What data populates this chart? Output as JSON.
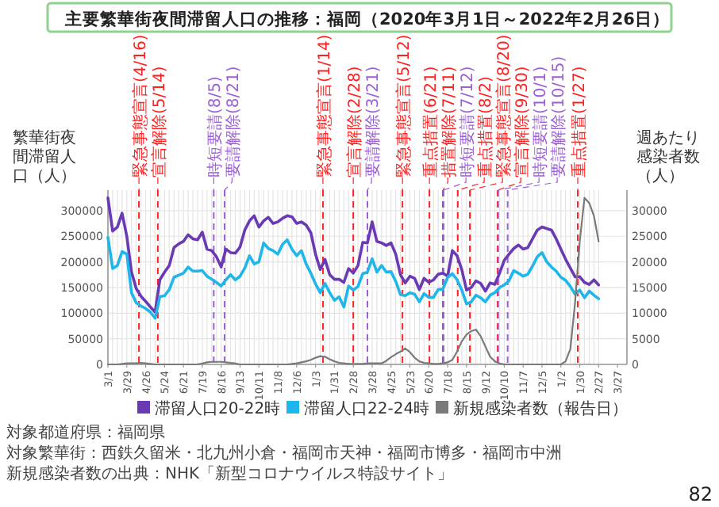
{
  "chart_data": {
    "type": "line",
    "title": "主要繁華街夜間滞留人口の推移：福岡（2020年3月1日～2022年2月26日）",
    "ylabel": "繁華街夜間滞留人口（人）",
    "y2label": "週あたり感染者数（人）",
    "x": [
      "2020-03-01",
      "2020-03-08",
      "2020-03-15",
      "2020-03-22",
      "2020-03-29",
      "2020-04-05",
      "2020-04-12",
      "2020-04-19",
      "2020-04-26",
      "2020-05-03",
      "2020-05-10",
      "2020-05-17",
      "2020-05-24",
      "2020-05-31",
      "2020-06-07",
      "2020-06-14",
      "2020-06-21",
      "2020-06-28",
      "2020-07-05",
      "2020-07-12",
      "2020-07-19",
      "2020-07-26",
      "2020-08-02",
      "2020-08-09",
      "2020-08-16",
      "2020-08-23",
      "2020-08-30",
      "2020-09-06",
      "2020-09-13",
      "2020-09-20",
      "2020-09-27",
      "2020-10-04",
      "2020-10-11",
      "2020-10-18",
      "2020-10-25",
      "2020-11-01",
      "2020-11-08",
      "2020-11-15",
      "2020-11-22",
      "2020-11-29",
      "2020-12-06",
      "2020-12-13",
      "2020-12-20",
      "2020-12-27",
      "2021-01-03",
      "2021-01-10",
      "2021-01-17",
      "2021-01-24",
      "2021-01-31",
      "2021-02-07",
      "2021-02-14",
      "2021-02-21",
      "2021-02-28",
      "2021-03-07",
      "2021-03-14",
      "2021-03-21",
      "2021-03-28",
      "2021-04-04",
      "2021-04-11",
      "2021-04-18",
      "2021-04-25",
      "2021-05-02",
      "2021-05-09",
      "2021-05-16",
      "2021-05-23",
      "2021-05-30",
      "2021-06-06",
      "2021-06-13",
      "2021-06-20",
      "2021-06-27",
      "2021-07-04",
      "2021-07-11",
      "2021-07-18",
      "2021-07-25",
      "2021-08-01",
      "2021-08-08",
      "2021-08-15",
      "2021-08-22",
      "2021-08-29",
      "2021-09-05",
      "2021-09-12",
      "2021-09-19",
      "2021-09-26",
      "2021-10-03",
      "2021-10-10",
      "2021-10-17",
      "2021-10-24",
      "2021-10-31",
      "2021-11-07",
      "2021-11-14",
      "2021-11-21",
      "2021-11-28",
      "2021-12-05",
      "2021-12-12",
      "2021-12-19",
      "2021-12-26",
      "2022-01-02",
      "2022-01-09",
      "2022-01-16",
      "2022-01-23",
      "2022-01-30",
      "2022-02-06",
      "2022-02-13",
      "2022-02-20",
      "2022-02-27"
    ],
    "series": [
      {
        "name": "滞留人口20-22時",
        "color": "#6a3ab5",
        "values": [
          325000,
          260000,
          268000,
          295000,
          250000,
          180000,
          148000,
          133000,
          123000,
          112000,
          102000,
          165000,
          180000,
          193000,
          228000,
          235000,
          240000,
          253000,
          245000,
          243000,
          258000,
          225000,
          222000,
          210000,
          190000,
          225000,
          218000,
          217000,
          229000,
          262000,
          280000,
          290000,
          268000,
          280000,
          287000,
          275000,
          278000,
          285000,
          290000,
          288000,
          275000,
          278000,
          272000,
          257000,
          215000,
          185000,
          205000,
          175000,
          166000,
          166000,
          160000,
          187000,
          178000,
          193000,
          238000,
          237000,
          278000,
          240000,
          237000,
          232000,
          237000,
          215000,
          175000,
          159000,
          172000,
          168000,
          146000,
          168000,
          160000,
          165000,
          176000,
          178000,
          172000,
          222000,
          212000,
          185000,
          145000,
          150000,
          163000,
          158000,
          143000,
          159000,
          156000,
          178000,
          203000,
          215000,
          226000,
          233000,
          225000,
          228000,
          245000,
          262000,
          268000,
          265000,
          262000,
          245000,
          225000,
          205000,
          188000,
          171000,
          171000,
          160000,
          156000,
          165000,
          155000
        ]
      },
      {
        "name": "滞留人口22-24時",
        "color": "#1fb6ea",
        "values": [
          248000,
          187000,
          193000,
          220000,
          215000,
          140000,
          120000,
          114000,
          109000,
          102000,
          90000,
          132000,
          134000,
          146000,
          170000,
          174000,
          178000,
          190000,
          182000,
          182000,
          183000,
          172000,
          166000,
          160000,
          153000,
          165000,
          175000,
          165000,
          172000,
          188000,
          212000,
          196000,
          200000,
          237000,
          226000,
          222000,
          215000,
          234000,
          243000,
          225000,
          212000,
          222000,
          196000,
          178000,
          157000,
          140000,
          158000,
          140000,
          125000,
          132000,
          112000,
          153000,
          145000,
          152000,
          177000,
          180000,
          206000,
          180000,
          193000,
          180000,
          181000,
          162000,
          136000,
          134000,
          140000,
          137000,
          122000,
          138000,
          131000,
          131000,
          146000,
          147000,
          170000,
          177000,
          165000,
          145000,
          118000,
          122000,
          135000,
          130000,
          122000,
          135000,
          140000,
          150000,
          155000,
          163000,
          183000,
          178000,
          172000,
          176000,
          192000,
          210000,
          218000,
          200000,
          190000,
          182000,
          170000,
          164000,
          152000,
          137000,
          145000,
          130000,
          143000,
          135000,
          128000
        ]
      },
      {
        "name": "新規感染者数（報告日）",
        "color": "#7a7a7a",
        "axis": "y2",
        "values": [
          0,
          0,
          0,
          100,
          200,
          200,
          200,
          300,
          200,
          100,
          0,
          0,
          0,
          0,
          0,
          0,
          0,
          0,
          0,
          0,
          200,
          400,
          500,
          500,
          500,
          400,
          300,
          200,
          0,
          0,
          0,
          0,
          0,
          0,
          0,
          0,
          0,
          0,
          0,
          100,
          200,
          400,
          600,
          900,
          1300,
          1600,
          1500,
          1000,
          600,
          300,
          200,
          100,
          100,
          100,
          100,
          200,
          200,
          200,
          200,
          700,
          1400,
          2000,
          2500,
          3100,
          2400,
          1300,
          600,
          300,
          200,
          100,
          100,
          200,
          400,
          900,
          2500,
          4500,
          5800,
          6500,
          6800,
          5500,
          3500,
          1500,
          600,
          200,
          0,
          0,
          0,
          0,
          0,
          0,
          0,
          0,
          0,
          0,
          0,
          0,
          0,
          600,
          3000,
          12000,
          24000,
          32500,
          31500,
          29000,
          24000
        ]
      }
    ],
    "xlim": [
      "2020-03-01",
      "2022-04-10"
    ],
    "xticks": [
      {
        "value": "2020-03-01",
        "label": "3/1"
      },
      {
        "value": "2020-03-29",
        "label": "3/29"
      },
      {
        "value": "2020-04-26",
        "label": "4/26"
      },
      {
        "value": "2020-05-24",
        "label": "5/24"
      },
      {
        "value": "2020-06-21",
        "label": "6/21"
      },
      {
        "value": "2020-07-19",
        "label": "7/19"
      },
      {
        "value": "2020-08-16",
        "label": "8/16"
      },
      {
        "value": "2020-09-13",
        "label": "9/13"
      },
      {
        "value": "2020-10-11",
        "label": "10/11"
      },
      {
        "value": "2020-11-08",
        "label": "11/8"
      },
      {
        "value": "2020-12-06",
        "label": "12/6"
      },
      {
        "value": "2021-01-03",
        "label": "1/3"
      },
      {
        "value": "2021-01-31",
        "label": "1/31"
      },
      {
        "value": "2021-02-28",
        "label": "2/28"
      },
      {
        "value": "2021-03-28",
        "label": "3/28"
      },
      {
        "value": "2021-04-25",
        "label": "4/25"
      },
      {
        "value": "2021-05-23",
        "label": "5/23"
      },
      {
        "value": "2021-06-20",
        "label": "6/20"
      },
      {
        "value": "2021-07-18",
        "label": "7/18"
      },
      {
        "value": "2021-08-15",
        "label": "8/15"
      },
      {
        "value": "2021-09-12",
        "label": "9/12"
      },
      {
        "value": "2021-10-10",
        "label": "10/10"
      },
      {
        "value": "2021-11-07",
        "label": "11/7"
      },
      {
        "value": "2021-12-05",
        "label": "12/5"
      },
      {
        "value": "2022-01-02",
        "label": "1/2"
      },
      {
        "value": "2022-01-30",
        "label": "1/30"
      },
      {
        "value": "2022-02-27",
        "label": "2/27"
      },
      {
        "value": "2022-03-27",
        "label": "3/27"
      }
    ],
    "ylim": [
      0,
      340000
    ],
    "yticks": [
      0,
      50000,
      100000,
      150000,
      200000,
      250000,
      300000
    ],
    "y2lim": [
      0,
      34000
    ],
    "y2ticks": [
      0,
      5000,
      10000,
      15000,
      20000,
      25000,
      30000
    ],
    "ref_lines": [
      {
        "axis": "x",
        "value": "2020-04-16",
        "label": "緊急事態宣言(4/16)",
        "color": "#ff2020",
        "line_style": "dashed"
      },
      {
        "axis": "x",
        "value": "2020-05-14",
        "label": "宣言解除(5/14)",
        "color": "#ff2020",
        "line_style": "dashed"
      },
      {
        "axis": "x",
        "value": "2020-08-05",
        "label": "時短要請(8/5)",
        "color": "#9b5fd6",
        "line_style": "dashed"
      },
      {
        "axis": "x",
        "value": "2020-08-21",
        "label": "要請解除(8/21)",
        "color": "#9b5fd6",
        "line_style": "dashed"
      },
      {
        "axis": "x",
        "value": "2021-01-14",
        "label": "緊急事態宣言(1/14)",
        "color": "#ff2020",
        "line_style": "dashed"
      },
      {
        "axis": "x",
        "value": "2021-02-28",
        "label": "宣言解除(2/28)",
        "color": "#ff2020",
        "line_style": "dashed"
      },
      {
        "axis": "x",
        "value": "2021-03-21",
        "label": "要請解除(3/21)",
        "color": "#9b5fd6",
        "line_style": "dashed"
      },
      {
        "axis": "x",
        "value": "2021-05-12",
        "label": "緊急事態宣言(5/12)",
        "color": "#ff2020",
        "line_style": "dashed"
      },
      {
        "axis": "x",
        "value": "2021-06-21",
        "label": "重点措置(6/21)",
        "color": "#ff2020",
        "line_style": "dashed"
      },
      {
        "axis": "x",
        "value": "2021-07-11",
        "label": "措置解除(7/11)",
        "color": "#ff2020",
        "line_style": "dashed"
      },
      {
        "axis": "x",
        "value": "2021-07-12",
        "label": "時短要請(7/12)",
        "color": "#9b5fd6",
        "line_style": "dashed"
      },
      {
        "axis": "x",
        "value": "2021-08-02",
        "label": "重点措置(8/2)",
        "color": "#ff2020",
        "line_style": "dashed"
      },
      {
        "axis": "x",
        "value": "2021-08-20",
        "label": "緊急事態宣言(8/20)",
        "color": "#ff2020",
        "line_style": "dashed"
      },
      {
        "axis": "x",
        "value": "2021-09-30",
        "label": "宣言解除(9/30)",
        "color": "#ff2020",
        "line_style": "dashed"
      },
      {
        "axis": "x",
        "value": "2021-10-01",
        "label": "時短要請(10/1)",
        "color": "#9b5fd6",
        "line_style": "dashed"
      },
      {
        "axis": "x",
        "value": "2021-10-15",
        "label": "要請解除(10/15)",
        "color": "#9b5fd6",
        "line_style": "dashed"
      },
      {
        "axis": "x",
        "value": "2022-01-27",
        "label": "重点措置(1/27)",
        "color": "#ff2020",
        "line_style": "dashed"
      }
    ],
    "grid": true,
    "legend": "bottom",
    "marker": "none",
    "line_style": "solid",
    "annotations": [
      "対象都道府県：福岡県",
      "対象繁華街：西鉄久留米・北九州小倉・福岡市天神・福岡市博多・福岡市中洲",
      "新規感染者数の出典：NHK「新型コロナウイルス特設サイト」",
      "82"
    ]
  }
}
